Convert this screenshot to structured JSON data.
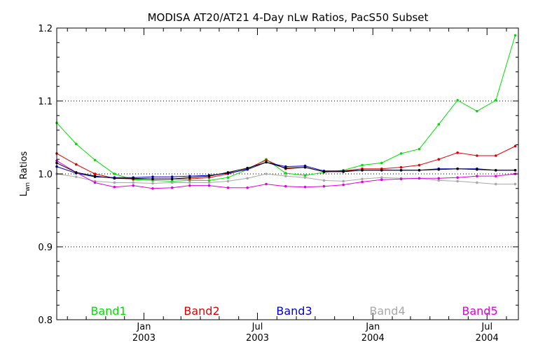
{
  "chart_data": {
    "type": "line",
    "title": "MODISA AT20/AT21 4-Day nLw Ratios, PacS50 Subset",
    "ylabel_main": "L",
    "ylabel_sub": "wn",
    "ylabel_rest": " Ratios",
    "xlabel": "",
    "ylim": [
      0.8,
      1.2
    ],
    "xlim": [
      "2002-08-15",
      "2004-08-20"
    ],
    "y_ticks": [
      0.8,
      0.9,
      1.0,
      1.1,
      1.2
    ],
    "y_tick_labels": [
      "0.8",
      "0.9",
      "1.0",
      "1.1",
      "1.2"
    ],
    "gridlines_y": [
      0.9,
      1.0,
      1.1
    ],
    "x_ticks": [
      {
        "date": "2003-01-01",
        "label_top": "Jan",
        "label_bottom": "2003"
      },
      {
        "date": "2003-07-01",
        "label_top": "Jul",
        "label_bottom": "2003"
      },
      {
        "date": "2004-01-01",
        "label_top": "Jan",
        "label_bottom": "2004"
      },
      {
        "date": "2004-07-01",
        "label_top": "Jul",
        "label_bottom": "2004"
      }
    ],
    "x_minor_ticks": [
      "2002-09-01",
      "2002-10-01",
      "2002-11-01",
      "2002-12-01",
      "2003-02-01",
      "2003-03-01",
      "2003-04-01",
      "2003-05-01",
      "2003-06-01",
      "2003-08-01",
      "2003-09-01",
      "2003-10-01",
      "2003-11-01",
      "2003-12-01",
      "2004-02-01",
      "2004-03-01",
      "2004-04-01",
      "2004-05-01",
      "2004-06-01",
      "2004-08-01"
    ],
    "x": [
      "2002-08-15",
      "2002-09-15",
      "2002-10-15",
      "2002-11-15",
      "2002-12-15",
      "2003-01-15",
      "2003-02-15",
      "2003-03-15",
      "2003-04-15",
      "2003-05-15",
      "2003-06-15",
      "2003-07-15",
      "2003-08-15",
      "2003-09-15",
      "2003-10-15",
      "2003-11-15",
      "2003-12-15",
      "2004-01-15",
      "2004-02-15",
      "2004-03-15",
      "2004-04-15",
      "2004-05-15",
      "2004-06-15",
      "2004-07-15",
      "2004-08-15"
    ],
    "series": [
      {
        "name": "Band1",
        "color": "#00e000",
        "values": [
          1.07,
          1.041,
          1.019,
          1.0,
          0.992,
          0.991,
          0.99,
          0.991,
          0.991,
          0.995,
          1.006,
          1.02,
          1.001,
          0.998,
          1.002,
          1.005,
          1.012,
          1.015,
          1.028,
          1.034,
          1.068,
          1.101,
          1.086,
          1.101,
          1.19
        ]
      },
      {
        "name": "Band2",
        "color": "#e00000",
        "values": [
          1.028,
          1.013,
          1.0,
          0.994,
          0.993,
          0.993,
          0.993,
          0.993,
          0.995,
          1.0,
          1.007,
          1.019,
          1.007,
          1.009,
          1.003,
          1.004,
          1.007,
          1.007,
          1.009,
          1.012,
          1.02,
          1.029,
          1.025,
          1.025,
          1.038
        ]
      },
      {
        "name": "Band3",
        "color": "#0000d0",
        "values": [
          1.01,
          1.001,
          0.996,
          0.995,
          0.995,
          0.996,
          0.996,
          0.997,
          0.998,
          1.001,
          1.006,
          1.016,
          1.01,
          1.011,
          1.004,
          1.004,
          1.005,
          1.005,
          1.005,
          1.005,
          1.007,
          1.007,
          1.007,
          1.005,
          1.005
        ]
      },
      {
        "name": "Band4",
        "color": "#a8a8a8",
        "values": [
          1.0,
          0.996,
          0.99,
          0.988,
          0.988,
          0.987,
          0.988,
          0.988,
          0.988,
          0.99,
          0.994,
          1.0,
          0.997,
          0.995,
          0.991,
          0.99,
          0.993,
          0.995,
          0.994,
          0.994,
          0.991,
          0.99,
          0.988,
          0.986,
          0.986
        ]
      },
      {
        "name": "Band5",
        "color": "#e000e0",
        "values": [
          1.018,
          1.002,
          0.988,
          0.982,
          0.984,
          0.98,
          0.981,
          0.984,
          0.984,
          0.981,
          0.981,
          0.986,
          0.983,
          0.982,
          0.983,
          0.985,
          0.989,
          0.992,
          0.993,
          0.994,
          0.994,
          0.995,
          0.997,
          0.997,
          1.0
        ]
      }
    ],
    "black_series": {
      "values": [
        1.015,
        1.002,
        0.997,
        0.994,
        0.994,
        0.993,
        0.993,
        0.995,
        0.997,
        1.002,
        1.008,
        1.016,
        1.008,
        1.009,
        1.003,
        1.003,
        1.005,
        1.005,
        1.005,
        1.005,
        1.006,
        1.007,
        1.006,
        1.005,
        1.005
      ],
      "color": "#000000"
    },
    "grid": true,
    "legend_placement": "bottom"
  }
}
